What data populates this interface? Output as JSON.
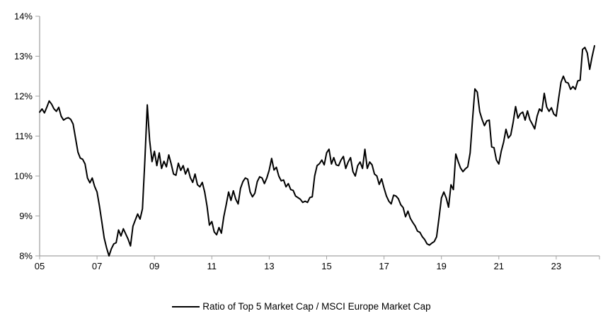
{
  "chart_data": {
    "type": "line",
    "title": "",
    "legend_label": "Ratio of Top 5 Market Cap / MSCI Europe Market Cap",
    "legend_position": "bottom-center",
    "grid": false,
    "line_color": "#000000",
    "axis_color": "#a3a3a3",
    "y_axis": {
      "min": 8,
      "max": 14,
      "step": 1,
      "tick_labels": [
        "8%",
        "9%",
        "10%",
        "11%",
        "12%",
        "13%",
        "14%"
      ]
    },
    "x_axis": {
      "tick_labels": [
        "05",
        "07",
        "09",
        "11",
        "13",
        "15",
        "17",
        "19",
        "21",
        "23"
      ],
      "tick_years": [
        2005,
        2007,
        2009,
        2011,
        2013,
        2015,
        2017,
        2019,
        2021,
        2023
      ],
      "start_year": 2005,
      "end_year_approx": 2024.4
    },
    "frequency": "monthly",
    "start": "2005-01",
    "series": [
      {
        "name": "Ratio of Top 5 Market Cap / MSCI Europe Market Cap",
        "color": "#000000",
        "values": [
          11.6,
          11.68,
          11.58,
          11.72,
          11.88,
          11.8,
          11.68,
          11.62,
          11.72,
          11.5,
          11.4,
          11.44,
          11.46,
          11.42,
          11.3,
          10.95,
          10.6,
          10.45,
          10.42,
          10.3,
          9.95,
          9.83,
          9.95,
          9.74,
          9.6,
          9.25,
          8.85,
          8.45,
          8.2,
          8.0,
          8.18,
          8.3,
          8.33,
          8.65,
          8.5,
          8.68,
          8.55,
          8.42,
          8.25,
          8.74,
          8.9,
          9.05,
          8.92,
          9.18,
          10.4,
          11.78,
          10.9,
          10.36,
          10.62,
          10.26,
          10.58,
          10.19,
          10.37,
          10.23,
          10.53,
          10.3,
          10.05,
          10.02,
          10.32,
          10.14,
          10.26,
          10.05,
          10.19,
          9.96,
          9.84,
          10.05,
          9.78,
          9.73,
          9.84,
          9.6,
          9.25,
          8.77,
          8.86,
          8.6,
          8.53,
          8.71,
          8.57,
          8.98,
          9.28,
          9.6,
          9.39,
          9.63,
          9.42,
          9.3,
          9.69,
          9.86,
          9.95,
          9.92,
          9.6,
          9.48,
          9.57,
          9.86,
          9.98,
          9.95,
          9.81,
          9.95,
          10.15,
          10.44,
          10.15,
          10.22,
          10.0,
          9.88,
          9.9,
          9.73,
          9.81,
          9.66,
          9.64,
          9.5,
          9.46,
          9.42,
          9.34,
          9.37,
          9.34,
          9.46,
          9.48,
          10.0,
          10.26,
          10.31,
          10.4,
          10.28,
          10.58,
          10.67,
          10.3,
          10.46,
          10.28,
          10.26,
          10.4,
          10.49,
          10.19,
          10.35,
          10.46,
          10.11,
          10.0,
          10.26,
          10.35,
          10.19,
          10.67,
          10.19,
          10.35,
          10.28,
          10.05,
          10.0,
          9.79,
          9.93,
          9.7,
          9.5,
          9.37,
          9.3,
          9.52,
          9.5,
          9.43,
          9.28,
          9.21,
          8.98,
          9.12,
          8.94,
          8.84,
          8.75,
          8.62,
          8.59,
          8.48,
          8.41,
          8.3,
          8.27,
          8.32,
          8.36,
          8.48,
          8.95,
          9.45,
          9.6,
          9.45,
          9.22,
          9.78,
          9.66,
          10.55,
          10.36,
          10.2,
          10.11,
          10.18,
          10.23,
          10.58,
          11.4,
          12.18,
          12.1,
          11.61,
          11.42,
          11.26,
          11.38,
          11.4,
          10.73,
          10.71,
          10.4,
          10.3,
          10.62,
          10.85,
          11.17,
          10.95,
          11.03,
          11.35,
          11.74,
          11.45,
          11.56,
          11.6,
          11.4,
          11.63,
          11.41,
          11.3,
          11.18,
          11.5,
          11.68,
          11.62,
          12.07,
          11.73,
          11.62,
          11.71,
          11.55,
          11.5,
          11.94,
          12.35,
          12.5,
          12.35,
          12.33,
          12.17,
          12.24,
          12.17,
          12.38,
          12.4,
          13.17,
          13.22,
          13.08,
          12.67,
          12.99,
          13.26
        ]
      }
    ]
  }
}
